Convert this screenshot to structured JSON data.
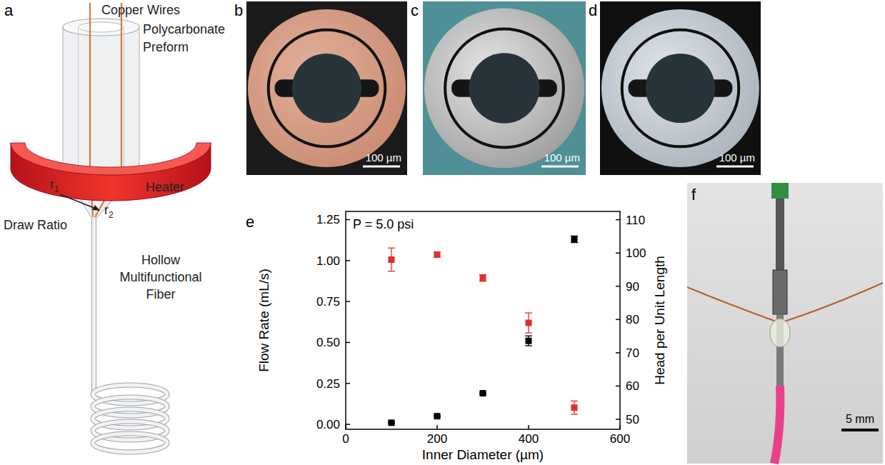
{
  "figure": {
    "panel_letters": [
      "a",
      "b",
      "c",
      "d",
      "e",
      "f"
    ],
    "schematic": {
      "copper_wires": "Copper Wires",
      "preform": "Polycarbonate Preform",
      "heater": "Heater",
      "r1": {
        "base": "r",
        "subscript": "1"
      },
      "r2": {
        "base": "r",
        "subscript": "2"
      },
      "draw_ratio": "Draw Ratio",
      "fiber": "Hollow Multifunctional Fiber"
    },
    "scale_bars": {
      "b": "100 µm",
      "c": "100 µm",
      "d": "100 µm",
      "f": "5 mm"
    }
  },
  "chart_data": {
    "type": "scatter",
    "annotations": [
      "P = 5.0 psi"
    ],
    "xlabel": "Inner Diameter (µm)",
    "ylabel": "Flow Rate (mL/s)",
    "y2label": "Head per Unit Length",
    "x": [
      100,
      200,
      300,
      400,
      500
    ],
    "xlim": [
      0,
      600
    ],
    "xticks": [
      0,
      200,
      400,
      600
    ],
    "ylim": [
      -0.03,
      1.3
    ],
    "yticks": [
      {
        "value": 0,
        "label": "0.00"
      },
      {
        "value": 0.25,
        "label": "0.25"
      },
      {
        "value": 0.5,
        "label": "0.50"
      },
      {
        "value": 0.75,
        "label": "0.75"
      },
      {
        "value": 1,
        "label": "1.00"
      },
      {
        "value": 1.25,
        "label": "1.25"
      }
    ],
    "y2lim": [
      47,
      112.5
    ],
    "y2ticks": [
      50,
      60,
      70,
      80,
      90,
      100,
      110
    ],
    "series": [
      {
        "color": "#000000",
        "marker": "square",
        "axis": "y",
        "values": [
          0.01,
          0.05,
          0.19,
          0.51,
          1.13
        ],
        "errors": [
          0.005,
          0.005,
          0.005,
          0.03,
          0.02
        ]
      },
      {
        "color": "#e0302a",
        "marker": "square",
        "axis": "y2",
        "values": [
          98,
          99.5,
          92.5,
          79,
          53.5
        ],
        "errors": [
          3.5,
          0.8,
          1,
          3,
          2
        ]
      }
    ]
  }
}
